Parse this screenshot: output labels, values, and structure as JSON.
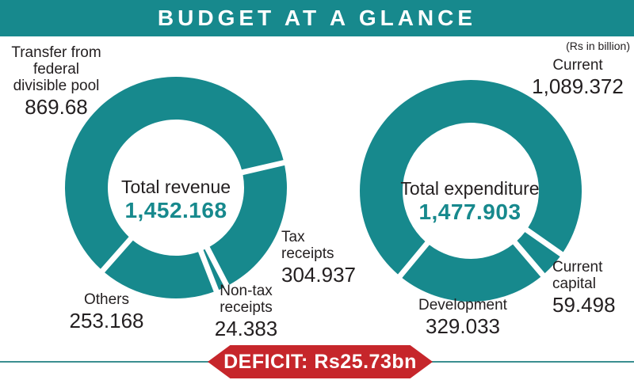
{
  "header": {
    "title": "BUDGET AT A GLANCE"
  },
  "note": "(Rs in billion)",
  "footer": {
    "deficit_label": "DEFICIT: Rs25.73bn"
  },
  "colors": {
    "teal": "#17898D",
    "red": "#C6262B",
    "text_dark": "#231F20",
    "white": "#FFFFFF"
  },
  "chart_data": [
    {
      "type": "pie",
      "variant": "donut",
      "title": "Total revenue",
      "total_value": 1452.168,
      "total_text": "1,452.168",
      "units": "Rs in billion",
      "start_angle_deg": 77,
      "clockwise": true,
      "legend_position": "labels-around-ring",
      "segments": [
        {
          "label": "Tax receipts",
          "label_lines": [
            "Tax",
            "receipts"
          ],
          "value": 304.937,
          "value_text": "304.937"
        },
        {
          "label": "Non-tax receipts",
          "label_lines": [
            "Non-tax",
            "receipts"
          ],
          "value": 24.383,
          "value_text": "24.383"
        },
        {
          "label": "Others",
          "label_lines": [
            "Others"
          ],
          "value": 253.168,
          "value_text": "253.168"
        },
        {
          "label": "Transfer from federal divisible pool",
          "label_lines": [
            "Transfer from",
            "federal",
            "divisible pool"
          ],
          "value": 869.68,
          "value_text": "869.68"
        }
      ]
    },
    {
      "type": "pie",
      "variant": "donut",
      "title": "Total expenditure",
      "total_value": 1477.903,
      "total_text": "1,477.903",
      "units": "Rs in billion",
      "start_angle_deg": 125,
      "clockwise": true,
      "legend_position": "labels-around-ring",
      "segments": [
        {
          "label": "Current capital",
          "label_lines": [
            "Current",
            "capital"
          ],
          "value": 59.498,
          "value_text": "59.498"
        },
        {
          "label": "Development",
          "label_lines": [
            "Development"
          ],
          "value": 329.033,
          "value_text": "329.033"
        },
        {
          "label": "Current",
          "label_lines": [
            "Current"
          ],
          "value": 1089.372,
          "value_text": "1,089.372"
        }
      ]
    }
  ]
}
